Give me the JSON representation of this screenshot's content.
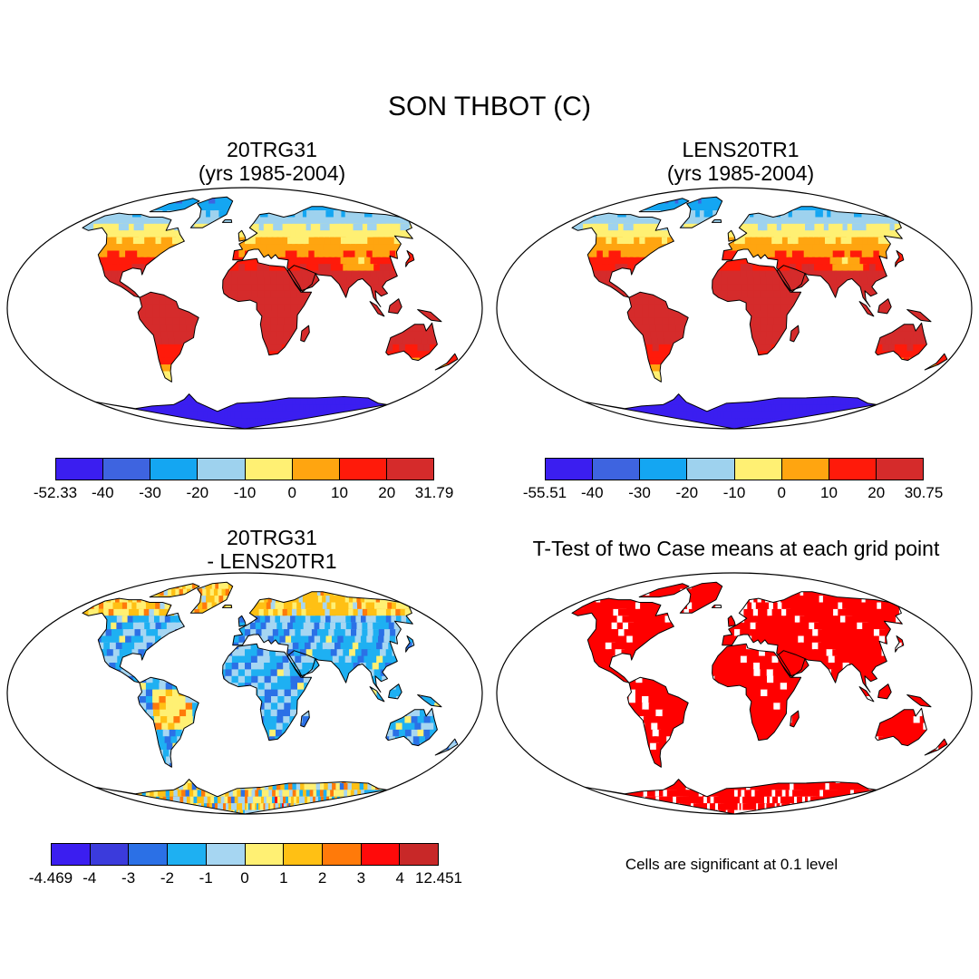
{
  "figure_title": "SON THBOT (C)",
  "panels": [
    {
      "id": "p1",
      "title": "20TRG31\n(yrs 1985-2004)",
      "colorbar": {
        "colors": [
          "#3b1ef0",
          "#3e64e0",
          "#14a6f2",
          "#9ed2ee",
          "#fff073",
          "#ffa510",
          "#ff1a0a",
          "#d52b2b"
        ],
        "labels": [
          "-52.33",
          "-40",
          "-30",
          "-20",
          "-10",
          "0",
          "10",
          "20",
          "31.79"
        ]
      }
    },
    {
      "id": "p2",
      "title": "LENS20TR1\n(yrs 1985-2004)",
      "colorbar": {
        "colors": [
          "#3b1ef0",
          "#3e64e0",
          "#14a6f2",
          "#9ed2ee",
          "#fff073",
          "#ffa510",
          "#ff1a0a",
          "#d52b2b"
        ],
        "labels": [
          "-55.51",
          "-40",
          "-30",
          "-20",
          "-10",
          "0",
          "10",
          "20",
          "30.75"
        ]
      }
    },
    {
      "id": "p3",
      "title": "20TRG31\n- LENS20TR1",
      "colorbar": {
        "colors": [
          "#3b1ef0",
          "#3b3bdc",
          "#2b70e6",
          "#1eb0f2",
          "#a6d6f2",
          "#fff073",
          "#ffc014",
          "#ff7a0a",
          "#ff0a0a",
          "#c82828"
        ],
        "labels": [
          "-4.469",
          "-4",
          "-3",
          "-2",
          "-1",
          "0",
          "1",
          "2",
          "3",
          "4",
          "12.451"
        ]
      }
    },
    {
      "id": "p4",
      "title": "T-Test of two Case means at each grid point",
      "note": "Cells are significant at 0.1 level"
    }
  ]
}
